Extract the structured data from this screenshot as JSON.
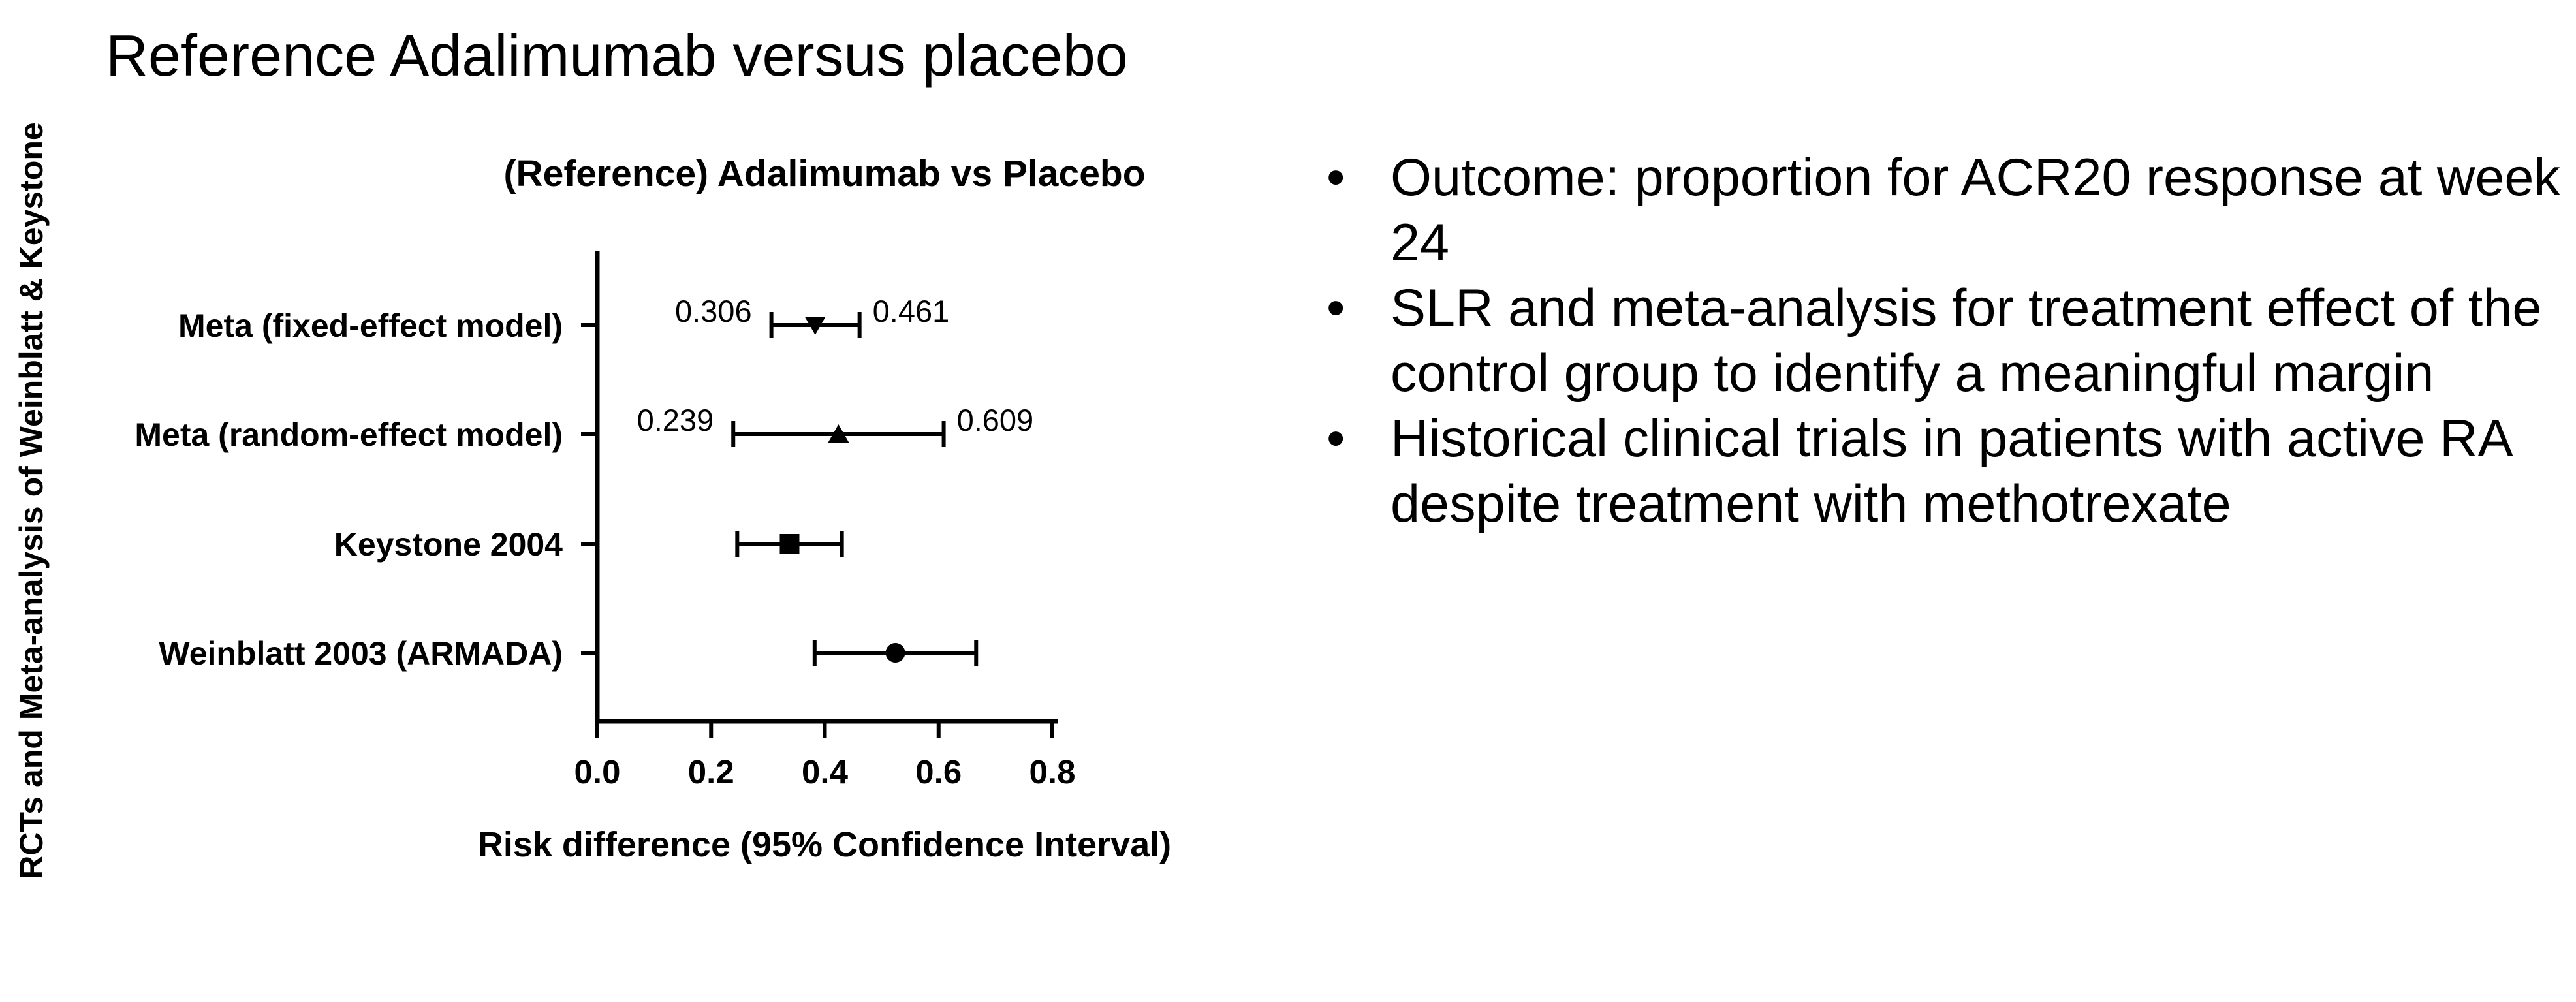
{
  "slide": {
    "title": "Reference Adalimumab versus placebo",
    "side_label": "RCTs and Meta-analysis of Weinblatt & Keystone"
  },
  "chart_data": {
    "type": "forest",
    "title": "(Reference) Adalimumab vs Placebo",
    "xlabel": "Risk difference (95% Confidence Interval)",
    "xlim": [
      0.0,
      0.8
    ],
    "x_ticks": [
      "0.0",
      "0.2",
      "0.4",
      "0.6",
      "0.8"
    ],
    "grid": false,
    "rows": [
      {
        "label": "Meta (fixed-effect model)",
        "estimate": 0.383,
        "lower": 0.306,
        "upper": 0.461,
        "marker": "triangle-down",
        "lower_label": "0.306",
        "upper_label": "0.461"
      },
      {
        "label": "Meta (random-effect model)",
        "estimate": 0.424,
        "lower": 0.239,
        "upper": 0.609,
        "marker": "triangle-up",
        "lower_label": "0.239",
        "upper_label": "0.609"
      },
      {
        "label": "Keystone 2004",
        "estimate": 0.338,
        "lower": 0.246,
        "upper": 0.43,
        "marker": "square",
        "lower_label": "",
        "upper_label": ""
      },
      {
        "label": "Weinblatt 2003 (ARMADA)",
        "estimate": 0.524,
        "lower": 0.382,
        "upper": 0.666,
        "marker": "circle",
        "lower_label": "",
        "upper_label": ""
      }
    ]
  },
  "bullets": [
    "Outcome: proportion for ACR20 response at week 24",
    "SLR and meta-analysis for treatment effect of the control group to identify a meaningful margin",
    "Historical clinical trials in patients with active RA despite treatment with methotrexate"
  ],
  "colors": {
    "text": "#000000",
    "background": "#ffffff"
  }
}
